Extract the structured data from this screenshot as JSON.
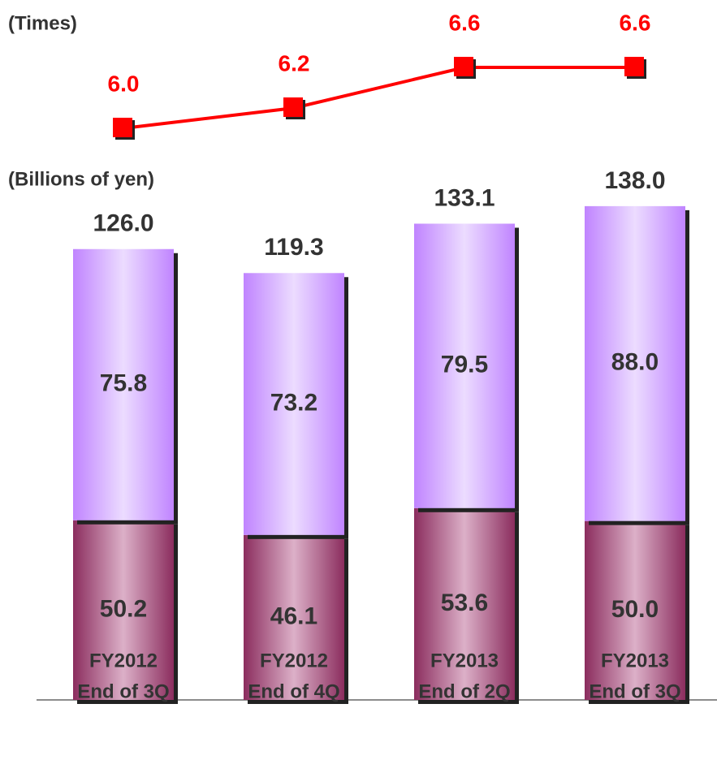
{
  "chart_data": [
    {
      "type": "bar",
      "stacked": true,
      "ylabel": "(Billions of yen)",
      "categories": [
        [
          "FY2012",
          "End of 3Q"
        ],
        [
          "FY2012",
          "End of 4Q"
        ],
        [
          "FY2013",
          "End of 2Q"
        ],
        [
          "FY2013",
          "End of 3Q"
        ]
      ],
      "ylim": [
        0,
        150
      ],
      "series": [
        {
          "color": "#8b2d5e",
          "light": "#dcb0c8",
          "values": [
            50.2,
            46.1,
            53.6,
            50.0
          ],
          "value_labels": [
            "50.2",
            "46.1",
            "53.6",
            "50.0"
          ]
        },
        {
          "color": "#c084ff",
          "light": "#ecdcff",
          "values": [
            75.8,
            73.2,
            79.5,
            88.0
          ],
          "value_labels": [
            "75.8",
            "73.2",
            "79.5",
            "88.0"
          ]
        }
      ],
      "totals": [
        126.0,
        119.3,
        133.1,
        138.0
      ],
      "total_labels": [
        "126.0",
        "119.3",
        "133.1",
        "138.0"
      ]
    },
    {
      "type": "line",
      "ylabel": "(Times)",
      "ylim": [
        5.8,
        6.8
      ],
      "series": [
        {
          "color": "#ff0000",
          "values": [
            6.0,
            6.2,
            6.6,
            6.6
          ],
          "value_labels": [
            "6.0",
            "6.2",
            "6.6",
            "6.6"
          ]
        }
      ]
    }
  ]
}
